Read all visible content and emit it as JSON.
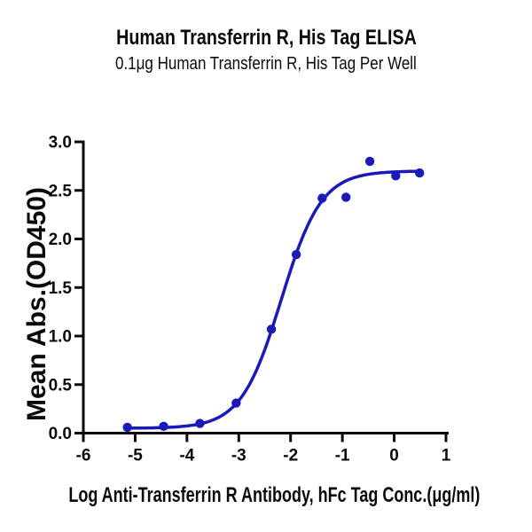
{
  "figure": {
    "title": "Human Transferrin R, His Tag ELISA",
    "subtitle": "0.1μg Human Transferrin R, His Tag Per Well"
  },
  "chart_data": {
    "type": "scatter",
    "curve_style": "4PL sigmoid fit line through points",
    "title": "Human Transferrin R, His Tag ELISA",
    "subtitle": "0.1μg Human Transferrin R, His Tag Per Well",
    "xlabel": "Log Anti-Transferrin R Antibody, hFc Tag Conc.(μg/ml)",
    "ylabel": "Mean Abs.(OD450)",
    "x": [
      -5.15,
      -4.45,
      -3.75,
      -3.05,
      -2.37,
      -1.89,
      -1.39,
      -0.93,
      -0.47,
      0.03,
      0.49
    ],
    "y": [
      0.06,
      0.07,
      0.1,
      0.31,
      1.07,
      1.84,
      2.42,
      2.43,
      2.8,
      2.65,
      2.68
    ],
    "fit": {
      "bottom": 0.05,
      "top": 2.7,
      "logec50": -2.18,
      "hill": 1.12
    },
    "xlim": [
      -6,
      1
    ],
    "ylim": [
      0,
      3
    ],
    "xticks": [
      -6,
      -5,
      -4,
      -3,
      -2,
      -1,
      0,
      1
    ],
    "xtick_labels": [
      "-6",
      "-5",
      "-4",
      "-3",
      "-2",
      "-1",
      "0",
      "1"
    ],
    "yticks": [
      0,
      0.5,
      1,
      1.5,
      2,
      2.5,
      3
    ],
    "ytick_labels": [
      "0.0",
      "0.5",
      "1.0",
      "1.5",
      "2.0",
      "2.5",
      "3.0"
    ],
    "grid": false,
    "legend": null,
    "point_color": "#1a1ab8",
    "line_color": "#1a1ab8",
    "axis_color": "#0a0a0a",
    "text_color": "#0a0a0a"
  }
}
